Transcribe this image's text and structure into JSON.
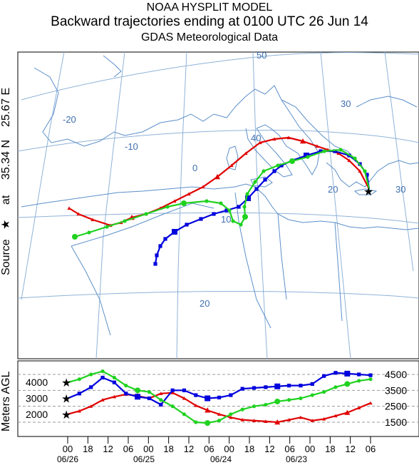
{
  "header": {
    "line1": "NOAA HYSPLIT MODEL",
    "line2": "Backward trajectories ending at 0100 UTC 26 Jun 14",
    "line3": "GDAS Meteorological Data"
  },
  "map": {
    "source_label_parts": [
      "Source",
      "at",
      "35.34 N",
      "25.67 E"
    ],
    "grid_labels": [
      "-20",
      "-10",
      "0",
      "10",
      "20",
      "30",
      "30",
      "20",
      "40",
      "50"
    ],
    "colors": {
      "coast": "#5b8fc9",
      "grid": "#8fb2d9",
      "red": "#e00000",
      "blue": "#0000dd",
      "green": "#1fd21f"
    },
    "trajectories": [
      {
        "name": "2000 m AGL",
        "color": "red"
      },
      {
        "name": "3000 m AGL",
        "color": "blue"
      },
      {
        "name": "4000 m AGL",
        "color": "green"
      }
    ]
  },
  "profile": {
    "ylabel": "Meters AGL",
    "left_ticks": [
      "4000",
      "3000",
      "2000"
    ],
    "right_ticks": [
      "4500",
      "3500",
      "2500",
      "1500"
    ],
    "hour_ticks": [
      "00",
      "18",
      "12",
      "06",
      "00",
      "18",
      "12",
      "06",
      "00",
      "18",
      "12",
      "06",
      "00",
      "18",
      "12",
      "06"
    ],
    "date_ticks": [
      "06/26",
      "06/25",
      "06/24",
      "06/23"
    ],
    "heights_m": {
      "red": [
        2000,
        2200,
        2500,
        2900,
        3100,
        3250,
        3150,
        3000,
        3300,
        3350,
        3000,
        2550,
        2250,
        2000,
        1800,
        1650,
        1600,
        1550,
        1500,
        1650,
        1800,
        1600,
        1700,
        1900,
        2100,
        2400,
        2700
      ],
      "blue": [
        3000,
        3300,
        3700,
        4300,
        4000,
        3300,
        3100,
        3000,
        2600,
        3500,
        3500,
        3200,
        3000,
        3050,
        3200,
        3600,
        3650,
        3700,
        3750,
        3800,
        3800,
        3900,
        4400,
        4600,
        4550,
        4500,
        4450
      ],
      "green": [
        4000,
        4200,
        4500,
        4700,
        4300,
        3800,
        3500,
        3400,
        2900,
        2500,
        2000,
        1500,
        1450,
        1600,
        2000,
        2300,
        2500,
        2600,
        2800,
        2900,
        3000,
        3200,
        3400,
        3700,
        3900,
        4100,
        4200
      ]
    }
  }
}
